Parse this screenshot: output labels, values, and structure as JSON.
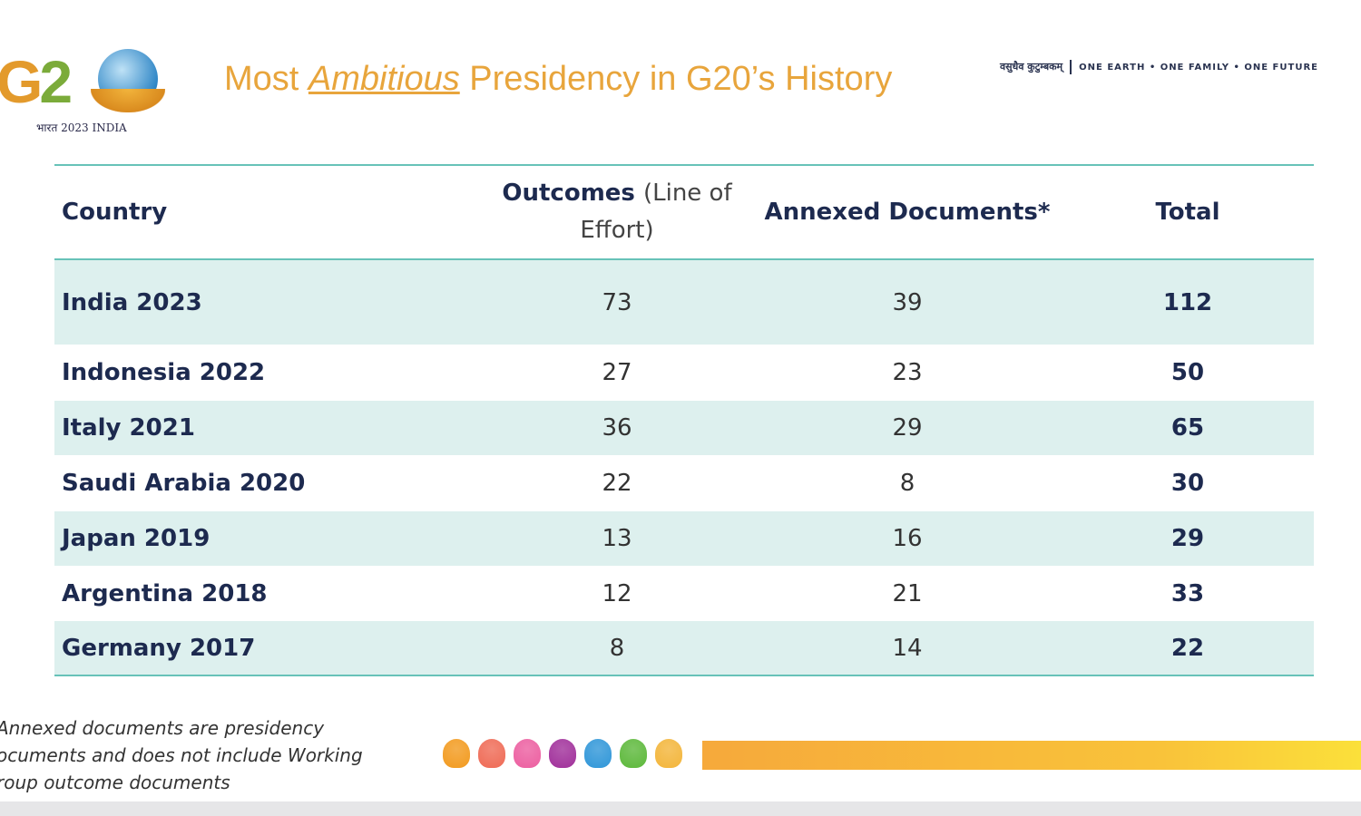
{
  "logo": {
    "text": "G20",
    "subtitle": "भारत 2023 INDIA"
  },
  "title": {
    "prefix": "Most ",
    "emphasis": "Ambitious",
    "suffix": " Presidency in G20’s History"
  },
  "tagline": {
    "sanskrit": "वसुधैव कुटुम्बकम्",
    "english": "ONE EARTH • ONE FAMILY • ONE FUTURE"
  },
  "table": {
    "headers": {
      "country": "Country",
      "outcomes": "Outcomes",
      "outcomes_note": "(Line of Effort)",
      "annexed": "Annexed Documents*",
      "total": "Total"
    },
    "rows": [
      {
        "country": "India 2023",
        "outcomes": "73",
        "annexed": "39",
        "total": "112"
      },
      {
        "country": "Indonesia 2022",
        "outcomes": "27",
        "annexed": "23",
        "total": "50"
      },
      {
        "country": "Italy 2021",
        "outcomes": "36",
        "annexed": "29",
        "total": "65"
      },
      {
        "country": "Saudi Arabia 2020",
        "outcomes": "22",
        "annexed": "8",
        "total": "30"
      },
      {
        "country": "Japan 2019",
        "outcomes": "13",
        "annexed": "16",
        "total": "29"
      },
      {
        "country": "Argentina 2018",
        "outcomes": "12",
        "annexed": "21",
        "total": "33"
      },
      {
        "country": "Germany 2017",
        "outcomes": "8",
        "annexed": "14",
        "total": "22"
      }
    ]
  },
  "footnote": [
    "Annexed documents are presidency",
    "ocuments and does not include Working",
    "roup outcome documents"
  ],
  "colors": {
    "title": "#e8a53c",
    "text": "#1d2a4f",
    "row_shade": "#ddf0ee",
    "rule": "#67c2b8",
    "lotus": [
      "#f29a1e",
      "#ef6a55",
      "#ec5ea0",
      "#a02f9a",
      "#2f96d8",
      "#5cb83a",
      "#f3b53a"
    ]
  }
}
